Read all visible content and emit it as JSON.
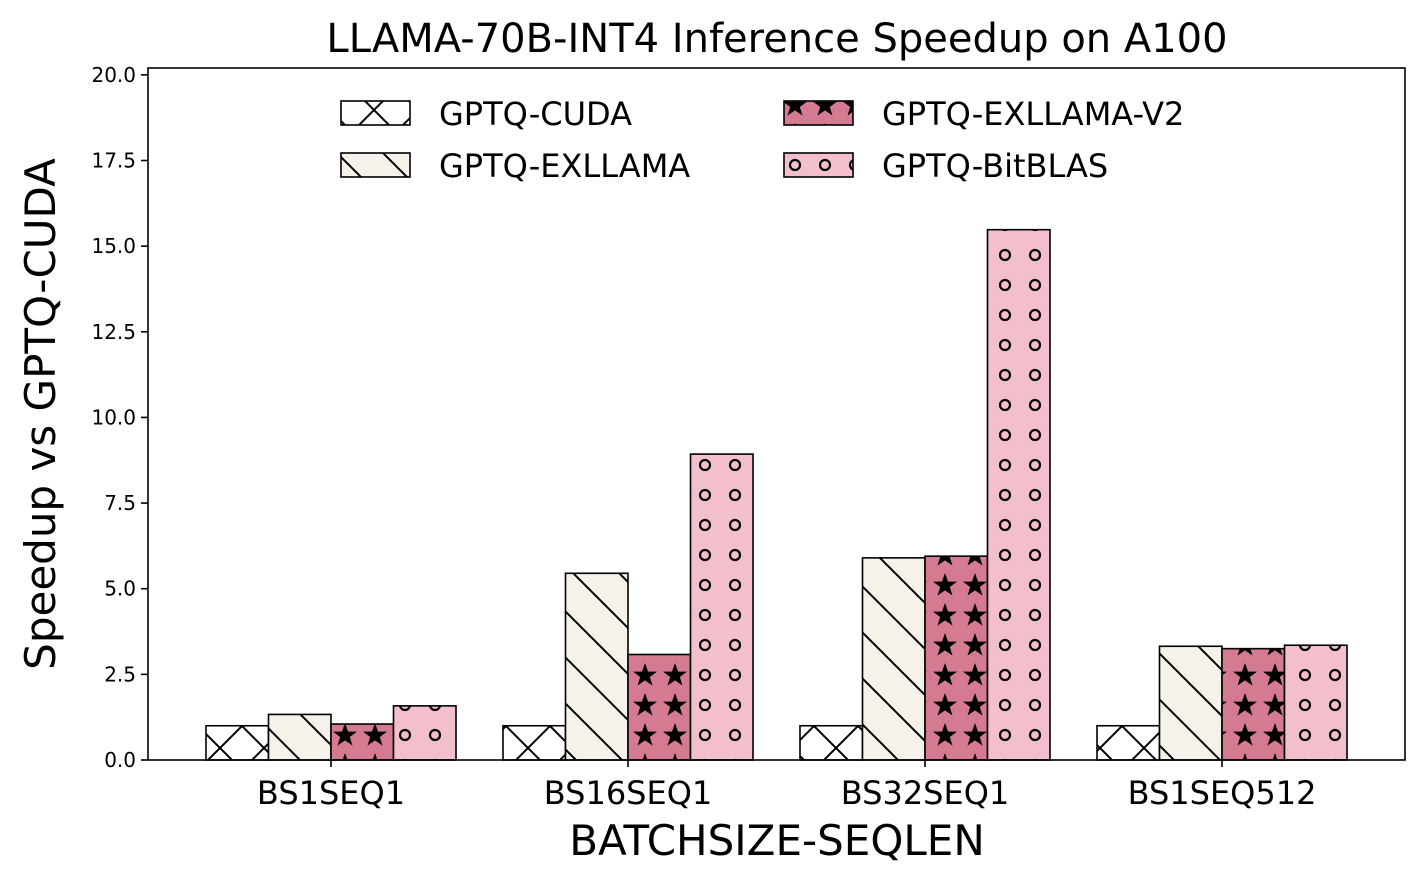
{
  "chart_data": {
    "type": "bar",
    "title": "LLAMA-70B-INT4 Inference Speedup on A100",
    "xlabel": "BATCHSIZE-SEQLEN",
    "ylabel": "Speedup vs GPTQ-CUDA",
    "categories": [
      "BS1SEQ1",
      "BS16SEQ1",
      "BS32SEQ1",
      "BS1SEQ512"
    ],
    "ylim": [
      0,
      20.2
    ],
    "yticks": [
      "0.0",
      "2.5",
      "5.0",
      "7.5",
      "10.0",
      "12.5",
      "15.0",
      "17.5",
      "20.0"
    ],
    "legend_placement": "upper-center",
    "grid": false,
    "series": [
      {
        "name": "GPTQ-CUDA",
        "values": [
          1.0,
          1.0,
          1.0,
          1.0
        ],
        "color": "#ffffff",
        "hatch": "cross"
      },
      {
        "name": "GPTQ-EXLLAMA",
        "values": [
          1.33,
          5.45,
          5.9,
          3.32
        ],
        "color": "#f6f2ea",
        "hatch": "backslash"
      },
      {
        "name": "GPTQ-EXLLAMA-V2",
        "values": [
          1.05,
          3.08,
          5.95,
          3.25
        ],
        "color": "#d47b91",
        "hatch": "stars"
      },
      {
        "name": "GPTQ-BitBLAS",
        "values": [
          1.58,
          8.93,
          15.48,
          3.35
        ],
        "color": "#f4bfcc",
        "hatch": "circles"
      }
    ]
  }
}
